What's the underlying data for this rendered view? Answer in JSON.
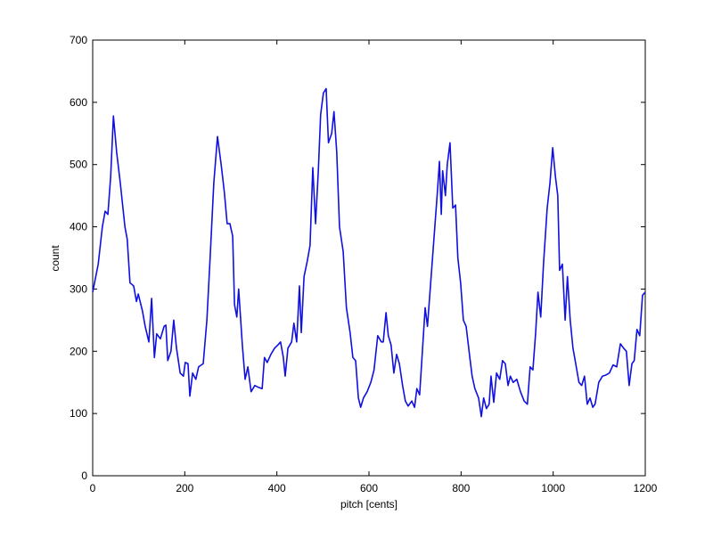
{
  "chart_data": {
    "type": "line",
    "xlabel": "pitch [cents]",
    "ylabel": "count",
    "xlim": [
      0,
      1200
    ],
    "ylim": [
      0,
      700
    ],
    "xticks": [
      0,
      200,
      400,
      600,
      800,
      1000,
      1200
    ],
    "yticks": [
      0,
      100,
      200,
      300,
      400,
      500,
      600,
      700
    ],
    "grid": false,
    "x": [
      0,
      12,
      21,
      27,
      33,
      39,
      45,
      52,
      60,
      70,
      75,
      81,
      89,
      95,
      99,
      108,
      114,
      122,
      128,
      134,
      139,
      147,
      155,
      159,
      163,
      170,
      176,
      182,
      190,
      197,
      201,
      207,
      211,
      217,
      224,
      230,
      240,
      248,
      255,
      263,
      271,
      279,
      286,
      292,
      298,
      304,
      308,
      313,
      317,
      325,
      331,
      337,
      344,
      352,
      360,
      368,
      373,
      379,
      387,
      395,
      402,
      408,
      414,
      418,
      424,
      432,
      437,
      443,
      449,
      453,
      459,
      466,
      472,
      478,
      484,
      490,
      495,
      501,
      507,
      512,
      519,
      524,
      530,
      536,
      544,
      551,
      559,
      565,
      571,
      577,
      582,
      588,
      596,
      604,
      611,
      619,
      627,
      631,
      637,
      642,
      648,
      654,
      660,
      666,
      673,
      679,
      685,
      693,
      699,
      704,
      710,
      716,
      722,
      727,
      735,
      743,
      749,
      753,
      757,
      760,
      766,
      770,
      776,
      782,
      788,
      793,
      799,
      805,
      811,
      819,
      824,
      830,
      838,
      844,
      849,
      855,
      861,
      865,
      871,
      877,
      884,
      890,
      896,
      902,
      907,
      913,
      921,
      929,
      937,
      944,
      950,
      956,
      962,
      967,
      973,
      979,
      987,
      993,
      999,
      1005,
      1010,
      1014,
      1020,
      1026,
      1031,
      1037,
      1043,
      1049,
      1056,
      1062,
      1068,
      1074,
      1080,
      1086,
      1091,
      1099,
      1107,
      1115,
      1122,
      1130,
      1138,
      1146,
      1153,
      1159,
      1165,
      1171,
      1176,
      1182,
      1188,
      1194,
      1200
    ],
    "series": [
      {
        "color": "#1010e0",
        "values": [
          295,
          340,
          400,
          425,
          420,
          480,
          578,
          520,
          470,
          400,
          380,
          310,
          305,
          280,
          292,
          265,
          240,
          215,
          285,
          190,
          228,
          220,
          240,
          242,
          185,
          200,
          250,
          205,
          165,
          160,
          182,
          180,
          128,
          165,
          155,
          175,
          180,
          250,
          350,
          470,
          545,
          500,
          455,
          405,
          405,
          385,
          275,
          255,
          300,
          210,
          155,
          175,
          135,
          145,
          142,
          140,
          190,
          182,
          195,
          205,
          210,
          215,
          190,
          160,
          205,
          215,
          245,
          215,
          305,
          230,
          320,
          345,
          370,
          495,
          405,
          490,
          580,
          615,
          622,
          535,
          550,
          585,
          520,
          400,
          360,
          270,
          230,
          190,
          185,
          125,
          110,
          125,
          135,
          150,
          170,
          225,
          215,
          215,
          262,
          225,
          210,
          165,
          195,
          180,
          145,
          120,
          112,
          120,
          110,
          140,
          130,
          200,
          270,
          240,
          320,
          400,
          460,
          505,
          420,
          490,
          450,
          500,
          535,
          430,
          435,
          350,
          310,
          250,
          240,
          190,
          160,
          140,
          125,
          95,
          125,
          108,
          115,
          160,
          118,
          165,
          155,
          185,
          180,
          145,
          160,
          150,
          155,
          135,
          120,
          115,
          175,
          170,
          230,
          295,
          255,
          340,
          430,
          470,
          527,
          480,
          450,
          330,
          340,
          250,
          320,
          250,
          205,
          180,
          150,
          145,
          160,
          115,
          125,
          110,
          115,
          150,
          160,
          162,
          165,
          178,
          175,
          212,
          205,
          200,
          145,
          180,
          185,
          235,
          225,
          290,
          295
        ]
      }
    ]
  }
}
